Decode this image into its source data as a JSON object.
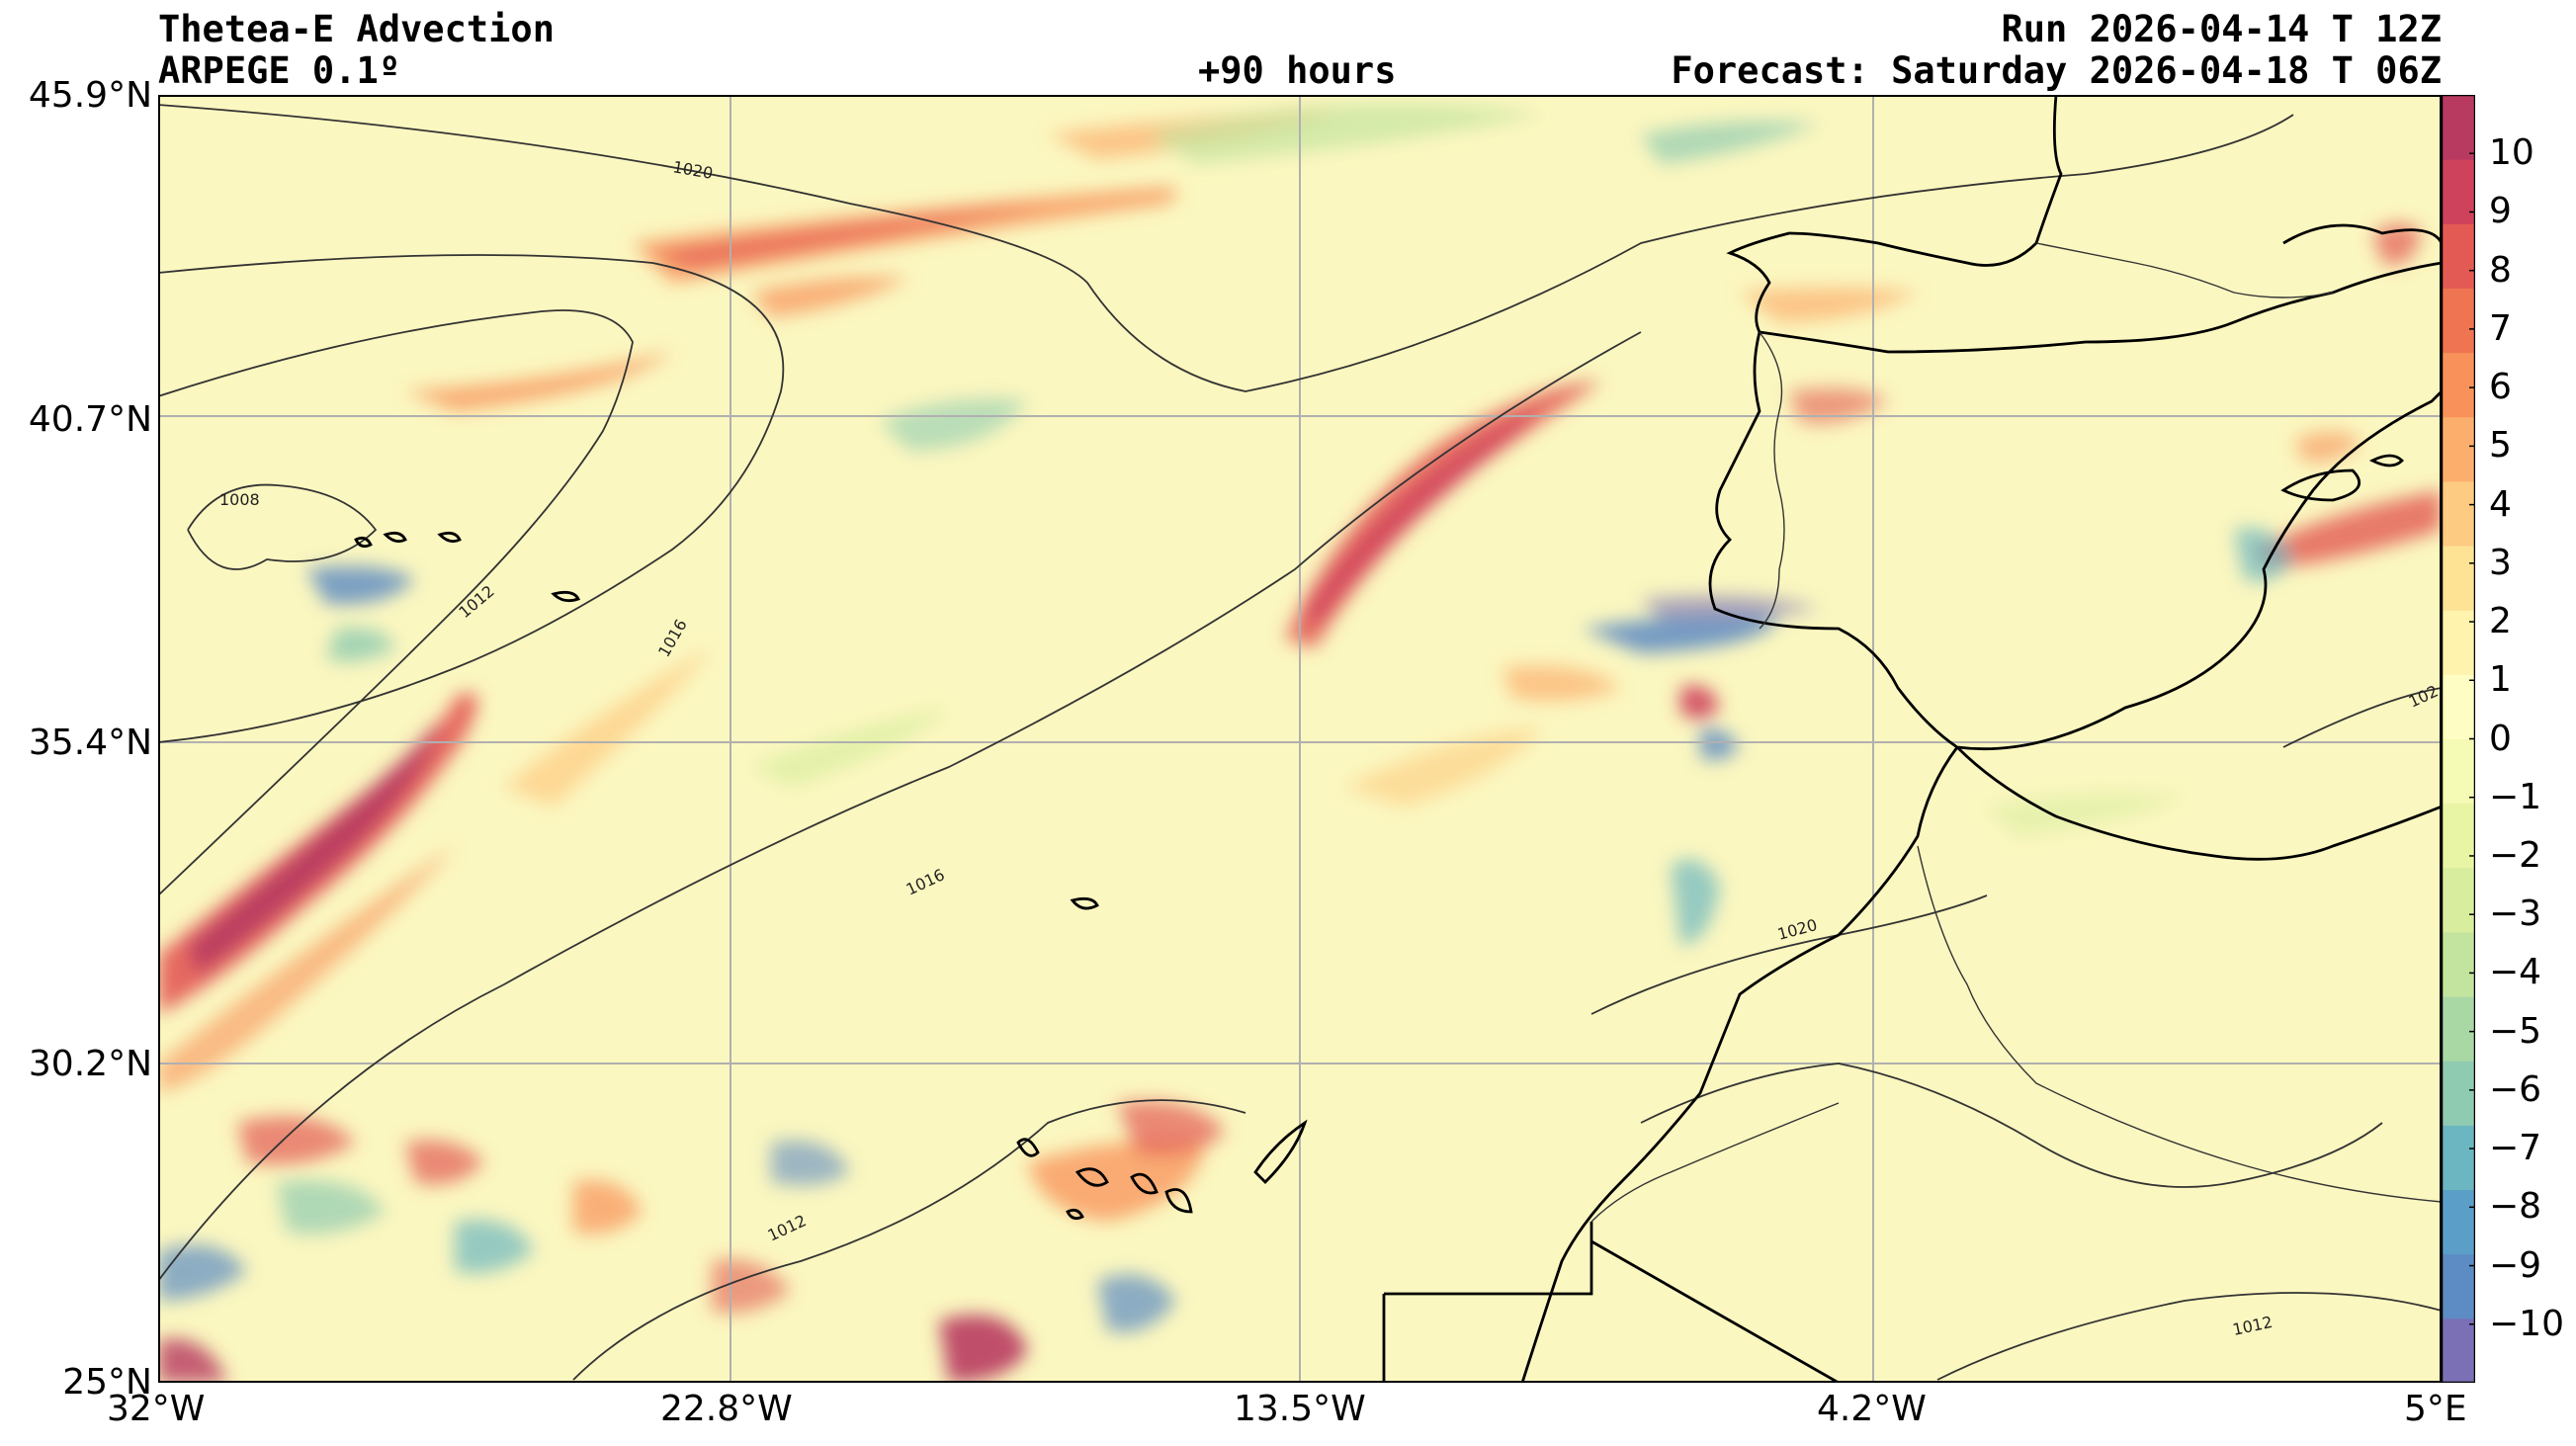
{
  "header": {
    "title": "Thetea-E Advection",
    "model": "ARPEGE 0.1º",
    "lead_time": "+90 hours",
    "run": "Run 2026-04-14 T 12Z",
    "forecast": "Forecast: Saturday 2026-04-18 T 06Z"
  },
  "axes": {
    "lat_ticks": [
      "45.9°N",
      "40.7°N",
      "35.4°N",
      "30.2°N",
      "25°N"
    ],
    "lon_ticks": [
      "32°W",
      "22.8°W",
      "13.5°W",
      "4.2°W",
      "5°E"
    ],
    "lat_range": [
      25,
      45.9
    ],
    "lon_range": [
      -32,
      5
    ],
    "grid": true
  },
  "colorbar": {
    "labels": [
      "10",
      "9",
      "8",
      "7",
      "6",
      "5",
      "4",
      "3",
      "2",
      "1",
      "0",
      "−1",
      "−2",
      "−3",
      "−4",
      "−5",
      "−6",
      "−7",
      "−8",
      "−9",
      "−10"
    ],
    "min": -11,
    "max": 11,
    "colors": [
      "#7b6fb5",
      "#5d8bc3",
      "#5b9fc9",
      "#6bb6c0",
      "#8fcbb0",
      "#a9d8a5",
      "#c3e49e",
      "#d8ee9e",
      "#e8f5a4",
      "#f5fab4",
      "#fefec4",
      "#fff3ad",
      "#fee395",
      "#fdcb81",
      "#fcaf6d",
      "#f8925a",
      "#ef7452",
      "#e35a54",
      "#cf425c",
      "#b83a60"
    ]
  },
  "map": {
    "isobar_labels": [
      "1020",
      "1008",
      "1012",
      "1016",
      "1016",
      "1020",
      "1012",
      "1012",
      "102"
    ],
    "background_color": "#fbf7c0"
  }
}
